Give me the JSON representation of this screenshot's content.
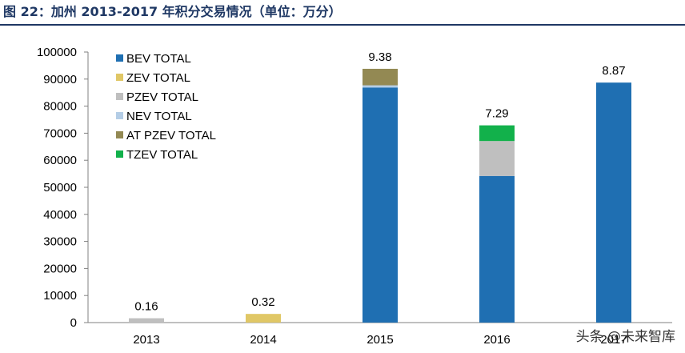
{
  "figure_title": "图 22：加州 2013-2017 年积分交易情况（单位：万分）",
  "watermark": "头条 @未来智库",
  "chart_data": {
    "type": "bar",
    "stacked": true,
    "title": "",
    "xlabel": "",
    "ylabel": "",
    "categories": [
      "2013",
      "2014",
      "2015",
      "2016",
      "2017"
    ],
    "ylim": [
      0,
      100000
    ],
    "yticks": [
      0,
      10000,
      20000,
      30000,
      40000,
      50000,
      60000,
      70000,
      80000,
      90000,
      100000
    ],
    "legend_position": "top-left",
    "grid": false,
    "series": [
      {
        "name": "BEV TOTAL",
        "color": "#1f6fb2",
        "values": [
          0,
          0,
          86900,
          54200,
          88700
        ]
      },
      {
        "name": "ZEV TOTAL",
        "color": "#e0c766",
        "values": [
          0,
          3200,
          0,
          0,
          0
        ]
      },
      {
        "name": "PZEV TOTAL",
        "color": "#bfbfbf",
        "values": [
          1600,
          0,
          0,
          12900,
          0
        ]
      },
      {
        "name": "NEV TOTAL",
        "color": "#b4cde6",
        "values": [
          0,
          0,
          800,
          0,
          0
        ]
      },
      {
        "name": "AT PZEV TOTAL",
        "color": "#938953",
        "values": [
          0,
          0,
          6100,
          0,
          0
        ]
      },
      {
        "name": "TZEV TOTAL",
        "color": "#12b14b",
        "values": [
          0,
          0,
          0,
          5800,
          0
        ]
      }
    ],
    "data_labels": [
      "0.16",
      "0.32",
      "9.38",
      "7.29",
      "8.87"
    ]
  }
}
